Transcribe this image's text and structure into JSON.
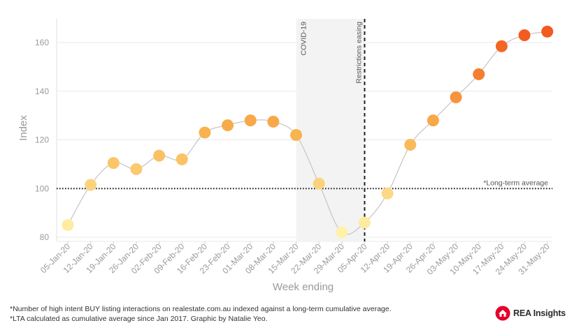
{
  "chart_data": {
    "type": "line",
    "ylabel": "Index",
    "xlabel": "Week ending",
    "ylim": [
      80,
      170
    ],
    "yticks": [
      80,
      100,
      120,
      140,
      160
    ],
    "grid": true,
    "categories": [
      "05-Jan-20",
      "12-Jan-20",
      "19-Jan-20",
      "26-Jan-20",
      "02-Feb-20",
      "09-Feb-20",
      "16-Feb-20",
      "23-Feb-20",
      "01-Mar-20",
      "08-Mar-20",
      "15-Mar-20",
      "22-Mar-20",
      "29-Mar-20",
      "05-Apr-20",
      "12-Apr-20",
      "19-Apr-20",
      "26-Apr-20",
      "03-May-20",
      "10-May-20",
      "17-May-20",
      "24-May-20",
      "31-May-20"
    ],
    "series": [
      {
        "values": [
          85,
          101.5,
          110.5,
          108,
          113.5,
          112,
          123,
          126,
          128,
          127.5,
          122,
          102,
          82,
          86,
          98,
          118,
          128,
          137.5,
          147,
          158.5,
          163,
          164.5
        ]
      }
    ],
    "reference_line": {
      "value": 100,
      "label": "*Long-term average"
    },
    "shaded_region": {
      "start": "15-Mar-20",
      "end": "05-Apr-20",
      "label": "COVID-19"
    },
    "vertical_line": {
      "at": "05-Apr-20",
      "label": "Restrictions easing"
    }
  },
  "footnotes": [
    "*Number of high intent BUY listing interactions on realestate.com.au indexed against a long-term cumulative average.",
    "*LTA calculated as cumulative average since Jan 2017. Graphic by Natalie Yeo."
  ],
  "logo": {
    "text": "REA Insights",
    "color": "#e4002b"
  },
  "colors": {
    "low": "#fff1a8",
    "mid": "#f9b450",
    "high": "#f35a1e",
    "line": "#c8c8c8",
    "shade": "#f3f3f3"
  }
}
